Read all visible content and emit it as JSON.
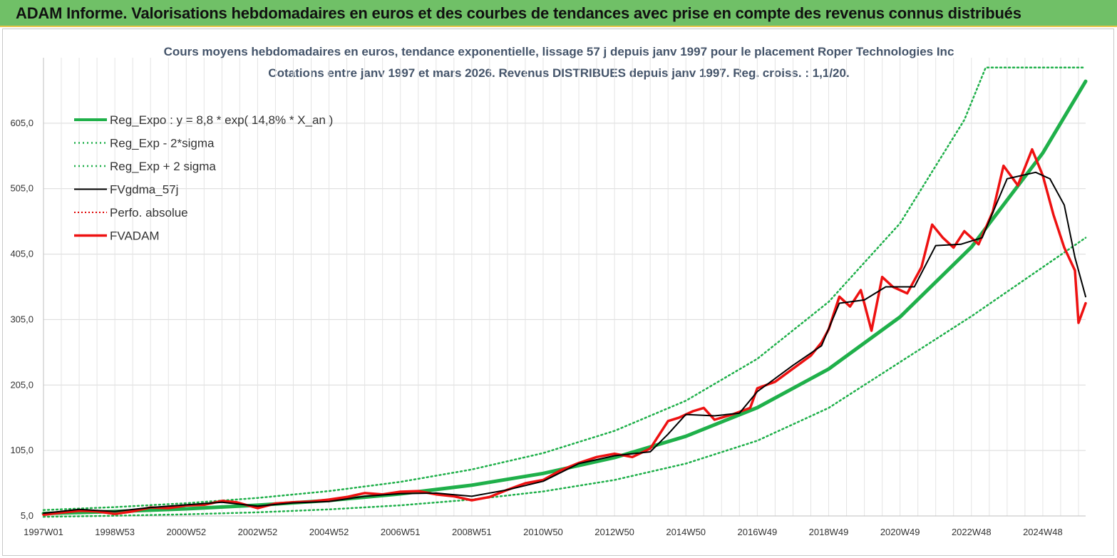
{
  "banner": {
    "title": "ADAM Informe. Valorisations hebdomadaires en euros et des courbes de tendances avec prise en compte des revenus connus distribués"
  },
  "colors": {
    "banner_bg": "#70c067",
    "reg_expo": "#1fb04a",
    "sigma_bands": "#1fb04a",
    "fvgdma": "#000000",
    "perfo": "#e00000",
    "fvadam": "#ee1111",
    "title_text": "#44546a"
  },
  "chart_data": {
    "type": "line",
    "title_line1": "Cours moyens hebdomadaires en euros, tendance exponentielle, lissage 57 j depuis janv 1997 pour le placement Roper Technologies Inc",
    "title_line2": "Cotations entre janv 1997 et mars 2026. Revenus DISTRIBUES depuis janv 1997. Reg. croiss. : 1,1/20.",
    "x_tick_labels": [
      "1997W01",
      "1998W53",
      "2000W52",
      "2002W52",
      "2004W52",
      "2006W51",
      "2008W51",
      "2010W50",
      "2012W50",
      "2014W50",
      "2016W49",
      "2018W49",
      "2020W49",
      "2022W48",
      "2024W48"
    ],
    "x_tick_years": [
      1997.0,
      1999.0,
      2001.0,
      2003.0,
      2005.0,
      2007.0,
      2009.0,
      2011.0,
      2013.0,
      2015.0,
      2017.0,
      2019.0,
      2021.0,
      2023.0,
      2025.0
    ],
    "x_range": [
      1997.0,
      2026.2
    ],
    "y_ticks": [
      "5,0",
      "105,0",
      "205,0",
      "305,0",
      "405,0",
      "505,0",
      "605,0"
    ],
    "y_tick_values": [
      5,
      105,
      205,
      305,
      405,
      505,
      605
    ],
    "ylim": [
      5,
      705
    ],
    "grid": true,
    "legend_position": "top-left",
    "series": [
      {
        "name": "Reg_Expo : y = 8,8 * exp( 14,8% *  X_an )",
        "style": "solid-thick",
        "points": [
          [
            1997,
            8.8
          ],
          [
            1999,
            11.8
          ],
          [
            2001,
            15.9
          ],
          [
            2003,
            21.4
          ],
          [
            2005,
            28.7
          ],
          [
            2007,
            38.7
          ],
          [
            2009,
            52.0
          ],
          [
            2011,
            70.0
          ],
          [
            2013,
            94.2
          ],
          [
            2015,
            126.7
          ],
          [
            2017,
            170.5
          ],
          [
            2019,
            229.5
          ],
          [
            2021,
            308.9
          ],
          [
            2023,
            415.7
          ],
          [
            2025,
            559.5
          ],
          [
            2026.2,
            669
          ]
        ]
      },
      {
        "name": "Reg_Exp - 2*sigma",
        "style": "dotted",
        "points": [
          [
            1997,
            3.7
          ],
          [
            1999,
            5.3
          ],
          [
            2001,
            7.5
          ],
          [
            2003,
            10.6
          ],
          [
            2005,
            15.0
          ],
          [
            2007,
            21.2
          ],
          [
            2009,
            30.0
          ],
          [
            2011,
            42.5
          ],
          [
            2013,
            60.0
          ],
          [
            2015,
            85.0
          ],
          [
            2017,
            120.0
          ],
          [
            2019,
            170.0
          ],
          [
            2021,
            240.0
          ],
          [
            2023,
            310.0
          ],
          [
            2025,
            385.0
          ],
          [
            2026.2,
            430.0
          ]
        ]
      },
      {
        "name": "Reg_Exp + 2 sigma",
        "style": "dotted",
        "points": [
          [
            1997,
            14.0
          ],
          [
            1999,
            18.5
          ],
          [
            2001,
            24.5
          ],
          [
            2003,
            32.5
          ],
          [
            2005,
            43.0
          ],
          [
            2007,
            57.0
          ],
          [
            2009,
            76.0
          ],
          [
            2011,
            101.0
          ],
          [
            2013,
            135.0
          ],
          [
            2015,
            181.0
          ],
          [
            2017,
            245.0
          ],
          [
            2019,
            332.0
          ],
          [
            2021,
            452.0
          ],
          [
            2022.8,
            610.0
          ],
          [
            2023.4,
            690.0
          ],
          [
            2026.2,
            690.0
          ]
        ]
      },
      {
        "name": "FVgdma_57j",
        "style": "solid-thin",
        "points": [
          [
            1997,
            9
          ],
          [
            1998,
            15
          ],
          [
            1999,
            12
          ],
          [
            2000,
            18
          ],
          [
            2001,
            22
          ],
          [
            2002,
            26
          ],
          [
            2003,
            20
          ],
          [
            2004,
            25
          ],
          [
            2005,
            27
          ],
          [
            2006,
            35
          ],
          [
            2007,
            39
          ],
          [
            2008,
            40
          ],
          [
            2009,
            35
          ],
          [
            2010,
            45
          ],
          [
            2011,
            58
          ],
          [
            2012,
            85
          ],
          [
            2013,
            97
          ],
          [
            2014,
            103
          ],
          [
            2014.5,
            130
          ],
          [
            2015,
            160
          ],
          [
            2015.8,
            158
          ],
          [
            2016.5,
            162
          ],
          [
            2017,
            195
          ],
          [
            2018,
            235
          ],
          [
            2018.8,
            265
          ],
          [
            2019.3,
            330
          ],
          [
            2020,
            335
          ],
          [
            2020.6,
            355
          ],
          [
            2021.4,
            355
          ],
          [
            2022,
            418
          ],
          [
            2022.7,
            420
          ],
          [
            2023.3,
            430
          ],
          [
            2024,
            520
          ],
          [
            2024.8,
            530
          ],
          [
            2025.2,
            520
          ],
          [
            2025.6,
            480
          ],
          [
            2025.9,
            400
          ],
          [
            2026.2,
            340
          ]
        ]
      },
      {
        "name": "Perfo. absolue",
        "style": "dotted",
        "points": []
      },
      {
        "name": "FVADAM",
        "style": "solid-thick",
        "points": [
          [
            1997,
            7
          ],
          [
            1997.5,
            10
          ],
          [
            1998,
            13
          ],
          [
            1998.5,
            12
          ],
          [
            1999,
            8
          ],
          [
            1999.5,
            12
          ],
          [
            2000,
            18
          ],
          [
            2000.5,
            17
          ],
          [
            2001,
            21
          ],
          [
            2001.5,
            22
          ],
          [
            2002,
            28
          ],
          [
            2002.4,
            26
          ],
          [
            2003,
            17
          ],
          [
            2003.5,
            24
          ],
          [
            2004,
            26
          ],
          [
            2004.5,
            27
          ],
          [
            2005,
            30
          ],
          [
            2005.5,
            34
          ],
          [
            2006,
            40
          ],
          [
            2006.5,
            38
          ],
          [
            2007,
            42
          ],
          [
            2007.5,
            43
          ],
          [
            2008,
            38
          ],
          [
            2008.5,
            35
          ],
          [
            2009,
            29
          ],
          [
            2009.5,
            34
          ],
          [
            2010,
            45
          ],
          [
            2010.5,
            55
          ],
          [
            2011,
            60
          ],
          [
            2011.5,
            75
          ],
          [
            2012,
            86
          ],
          [
            2012.5,
            95
          ],
          [
            2013,
            100
          ],
          [
            2013.5,
            95
          ],
          [
            2014,
            108
          ],
          [
            2014.5,
            150
          ],
          [
            2014.8,
            155
          ],
          [
            2015.2,
            165
          ],
          [
            2015.5,
            170
          ],
          [
            2015.8,
            152
          ],
          [
            2016.3,
            160
          ],
          [
            2016.8,
            170
          ],
          [
            2017,
            200
          ],
          [
            2017.5,
            210
          ],
          [
            2018,
            230
          ],
          [
            2018.5,
            250
          ],
          [
            2018.8,
            270
          ],
          [
            2019,
            290
          ],
          [
            2019.3,
            340
          ],
          [
            2019.6,
            325
          ],
          [
            2019.9,
            350
          ],
          [
            2020.2,
            288
          ],
          [
            2020.5,
            370
          ],
          [
            2020.8,
            355
          ],
          [
            2021.2,
            345
          ],
          [
            2021.6,
            385
          ],
          [
            2021.9,
            450
          ],
          [
            2022.2,
            430
          ],
          [
            2022.5,
            415
          ],
          [
            2022.8,
            440
          ],
          [
            2023.2,
            420
          ],
          [
            2023.6,
            470
          ],
          [
            2023.9,
            540
          ],
          [
            2024.3,
            510
          ],
          [
            2024.7,
            565
          ],
          [
            2025.0,
            525
          ],
          [
            2025.3,
            465
          ],
          [
            2025.6,
            415
          ],
          [
            2025.9,
            380
          ],
          [
            2026.0,
            300
          ],
          [
            2026.2,
            330
          ]
        ]
      }
    ]
  }
}
